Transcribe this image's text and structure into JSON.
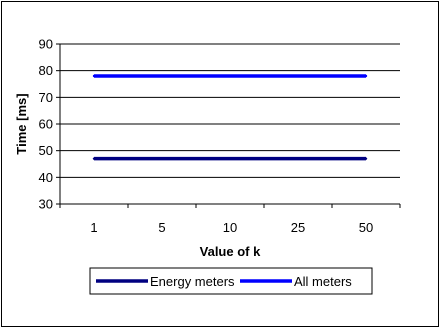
{
  "chart_data": {
    "type": "line",
    "categories": [
      "1",
      "5",
      "10",
      "25",
      "50"
    ],
    "series": [
      {
        "name": "Energy meters",
        "values": [
          47,
          47,
          47,
          47,
          47
        ],
        "color": "#000080"
      },
      {
        "name": "All meters",
        "values": [
          78,
          78,
          78,
          78,
          78
        ],
        "color": "#0000ff"
      }
    ],
    "title": "",
    "xlabel": "Value of k",
    "ylabel": "Time [ms]",
    "ylim": [
      30,
      90
    ],
    "yticks": [
      30,
      40,
      50,
      60,
      70,
      80,
      90
    ],
    "grid": true,
    "legend_position": "bottom"
  }
}
